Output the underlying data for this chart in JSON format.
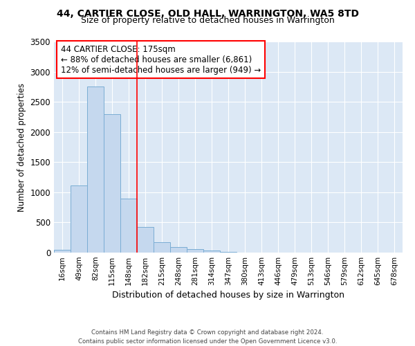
{
  "title": "44, CARTIER CLOSE, OLD HALL, WARRINGTON, WA5 8TD",
  "subtitle": "Size of property relative to detached houses in Warrington",
  "xlabel": "Distribution of detached houses by size in Warrington",
  "ylabel": "Number of detached properties",
  "categories": [
    "16sqm",
    "49sqm",
    "82sqm",
    "115sqm",
    "148sqm",
    "182sqm",
    "215sqm",
    "248sqm",
    "281sqm",
    "314sqm",
    "347sqm",
    "380sqm",
    "413sqm",
    "446sqm",
    "479sqm",
    "513sqm",
    "546sqm",
    "579sqm",
    "612sqm",
    "645sqm",
    "678sqm"
  ],
  "values": [
    50,
    1110,
    2750,
    2300,
    900,
    430,
    170,
    95,
    55,
    40,
    15,
    5,
    3,
    2,
    1,
    0,
    0,
    0,
    0,
    0,
    0
  ],
  "bar_color": "#c5d8ee",
  "bar_edge_color": "#7aadd4",
  "vline_x": 5,
  "annotation_title": "44 CARTIER CLOSE: 175sqm",
  "annotation_line1": "← 88% of detached houses are smaller (6,861)",
  "annotation_line2": "12% of semi-detached houses are larger (949) →",
  "background_color": "#dce8f5",
  "ylim": [
    0,
    3500
  ],
  "yticks": [
    0,
    500,
    1000,
    1500,
    2000,
    2500,
    3000,
    3500
  ],
  "footer1": "Contains HM Land Registry data © Crown copyright and database right 2024.",
  "footer2": "Contains public sector information licensed under the Open Government Licence v3.0."
}
